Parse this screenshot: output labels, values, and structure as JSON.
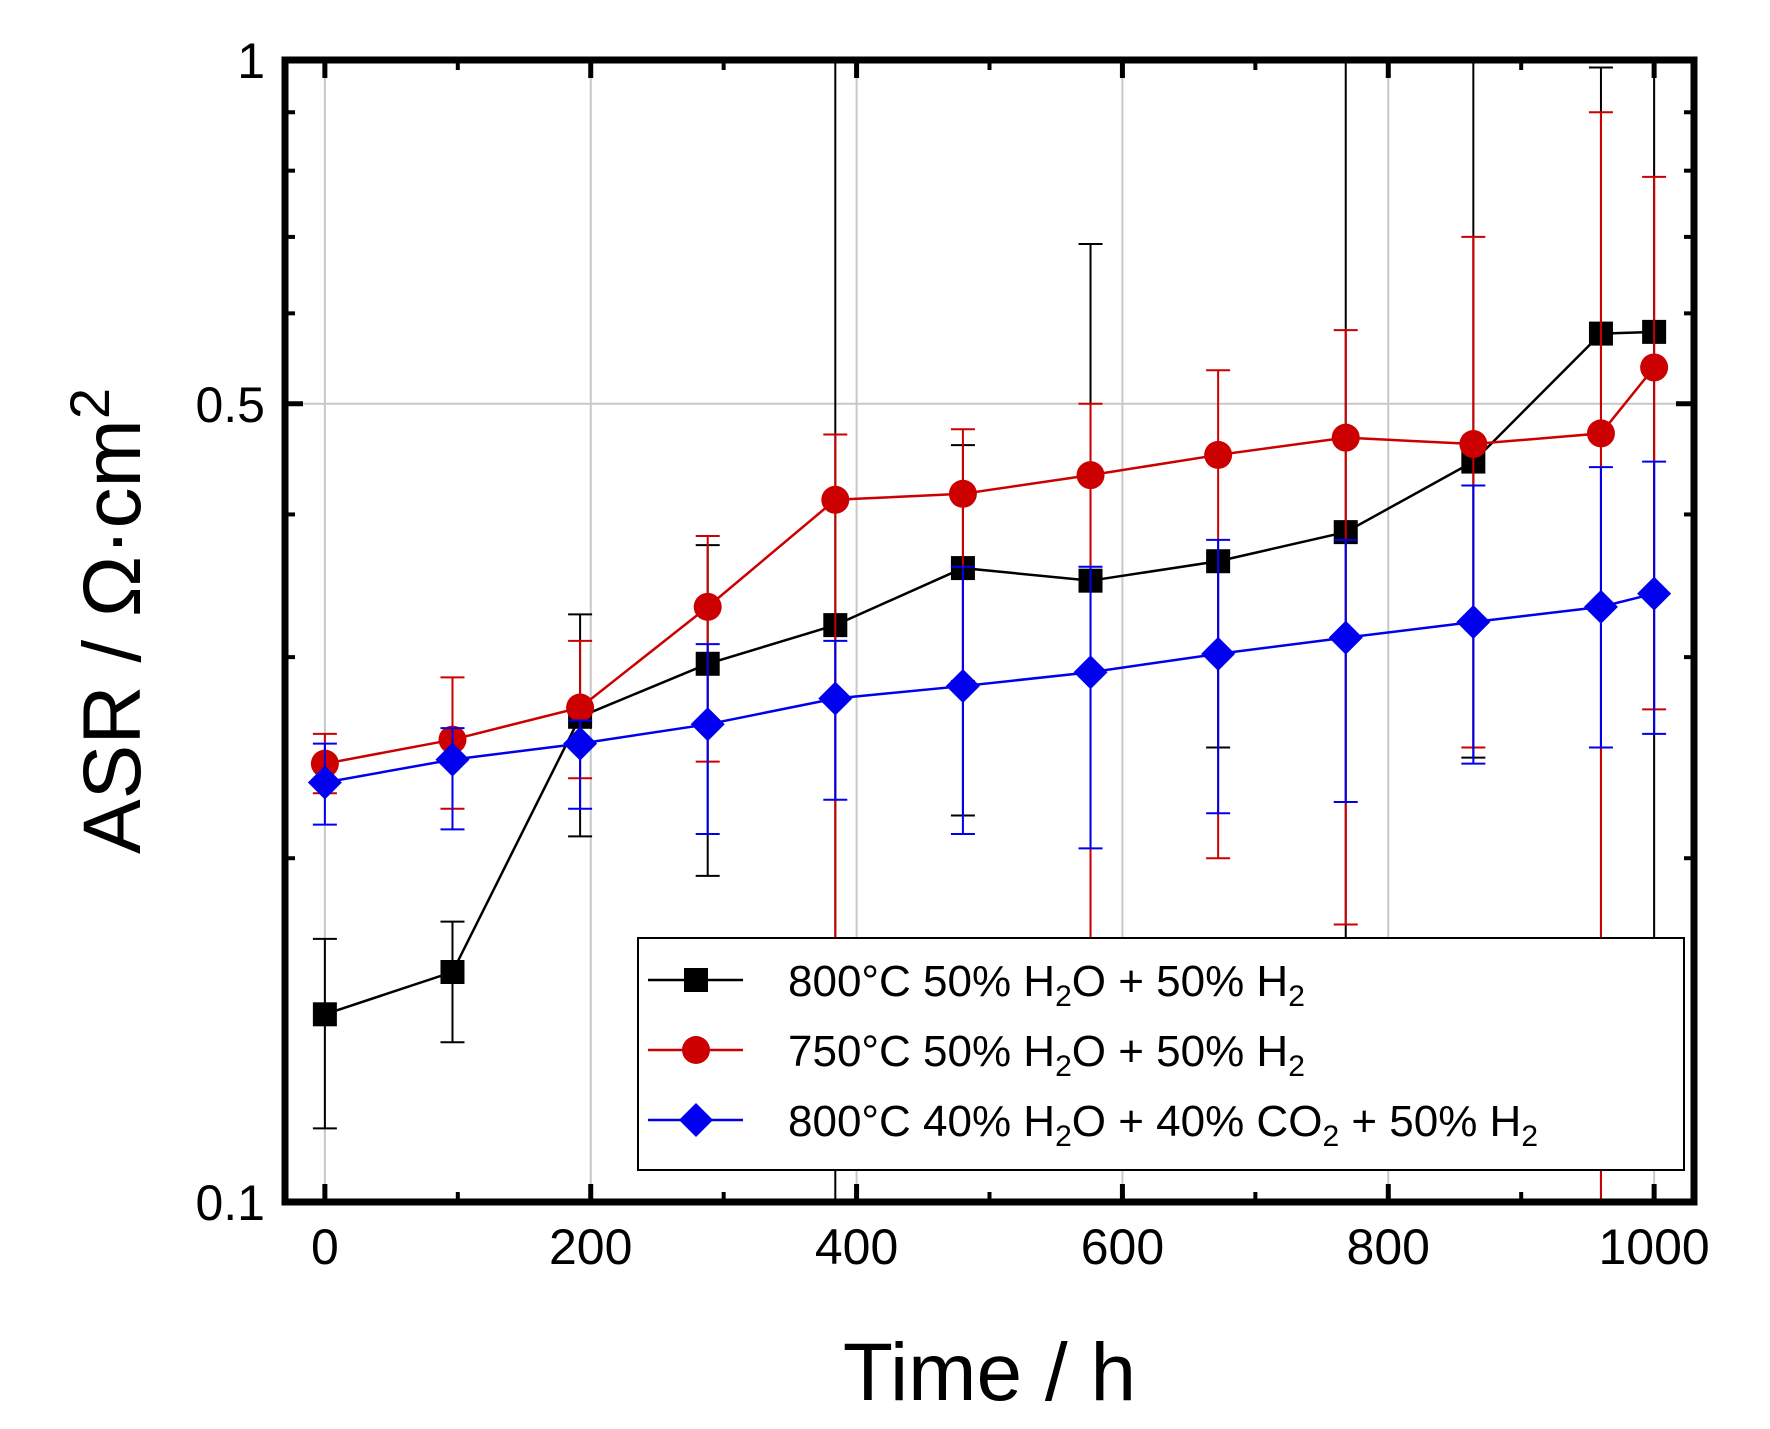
{
  "chart_data": {
    "type": "line",
    "title": "",
    "xlabel": "Time / h",
    "ylabel": "ASR / Ω·cm²",
    "ylabel_parts": {
      "main": "ASR / Ω·cm",
      "sup": "2"
    },
    "xlim": [
      -30,
      1030
    ],
    "ylim": [
      0.1,
      1.0
    ],
    "yscale": "log",
    "x_ticks": [
      0,
      200,
      400,
      600,
      800,
      1000
    ],
    "x_tick_labels": [
      "0",
      "200",
      "400",
      "600",
      "800",
      "1000"
    ],
    "y_ticks": [
      0.1,
      0.5,
      1.0
    ],
    "y_tick_labels": [
      "0.1",
      "0.5",
      "1"
    ],
    "grid": true,
    "legend_position": "lower-right",
    "series": [
      {
        "name": "800°C 50% H2O + 50% H2",
        "label_parts": [
          [
            "800°C 50% H",
            ""
          ],
          [
            "2",
            "sub"
          ],
          [
            "O + 50% H",
            ""
          ],
          [
            "2",
            "sub"
          ]
        ],
        "color": "#000000",
        "marker": "square",
        "x": [
          0,
          96,
          192,
          288,
          384,
          480,
          576,
          672,
          768,
          864,
          960,
          1000
        ],
        "y": [
          0.146,
          0.159,
          0.266,
          0.296,
          0.32,
          0.359,
          0.35,
          0.364,
          0.386,
          0.445,
          0.576,
          0.578
        ],
        "err_low": [
          0.116,
          0.138,
          0.209,
          0.193,
          0.09,
          0.218,
          0.13,
          0.25,
          0.13,
          0.245,
          0.075,
          0.13
        ],
        "err_high": [
          0.17,
          0.176,
          0.327,
          0.376,
          1.0,
          0.46,
          0.69,
          0.37,
          1.0,
          1.0,
          0.985,
          1.0
        ]
      },
      {
        "name": "750°C 50% H2O + 50% H2",
        "label_parts": [
          [
            "750°C 50% H",
            ""
          ],
          [
            "2",
            "sub"
          ],
          [
            "O + 50% H",
            ""
          ],
          [
            "2",
            "sub"
          ]
        ],
        "color": "#cc0000",
        "marker": "circle",
        "x": [
          0,
          96,
          192,
          288,
          384,
          480,
          576,
          672,
          768,
          864,
          960,
          1000
        ],
        "y": [
          0.242,
          0.254,
          0.271,
          0.332,
          0.412,
          0.417,
          0.433,
          0.451,
          0.467,
          0.461,
          0.471,
          0.538
        ],
        "err_low": [
          0.228,
          0.221,
          0.235,
          0.243,
          0.135,
          0.286,
          0.16,
          0.2,
          0.175,
          0.25,
          0.1,
          0.27
        ],
        "err_high": [
          0.257,
          0.288,
          0.31,
          0.383,
          0.47,
          0.475,
          0.5,
          0.535,
          0.58,
          0.7,
          0.9,
          0.79
        ]
      },
      {
        "name": "800°C 40% H2O + 40% CO2 + 50% H2",
        "label_parts": [
          [
            "800°C 40% H",
            ""
          ],
          [
            "2",
            "sub"
          ],
          [
            "O + 40% CO",
            ""
          ],
          [
            "2",
            "sub"
          ],
          [
            " + 50% H",
            ""
          ],
          [
            "2",
            "sub"
          ]
        ],
        "color": "#0000ee",
        "marker": "diamond",
        "x": [
          0,
          96,
          192,
          288,
          384,
          480,
          576,
          672,
          768,
          864,
          960,
          1000
        ],
        "y": [
          0.233,
          0.244,
          0.252,
          0.262,
          0.276,
          0.283,
          0.291,
          0.302,
          0.312,
          0.322,
          0.332,
          0.341
        ],
        "err_low": [
          0.214,
          0.212,
          0.221,
          0.21,
          0.225,
          0.21,
          0.204,
          0.219,
          0.224,
          0.242,
          0.25,
          0.257
        ],
        "err_high": [
          0.252,
          0.26,
          0.264,
          0.308,
          0.31,
          0.36,
          0.36,
          0.38,
          0.38,
          0.424,
          0.44,
          0.445
        ]
      }
    ]
  }
}
